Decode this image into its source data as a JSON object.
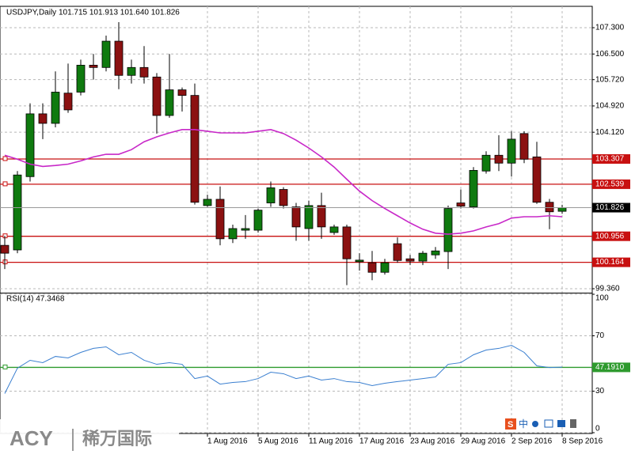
{
  "chart_data": [
    {
      "type": "candlestick",
      "title": "USDJPY,Daily  101.715 101.913 101.640 101.826",
      "categories": [
        null,
        null,
        null,
        null,
        null,
        null,
        null,
        null,
        null,
        null,
        null,
        null,
        null,
        null,
        null,
        null,
        "1 Aug 2016",
        null,
        null,
        null,
        "5 Aug 2016",
        null,
        null,
        null,
        "11 Aug 2016",
        null,
        null,
        null,
        "17 Aug 2016",
        null,
        null,
        null,
        "23 Aug 2016",
        null,
        null,
        null,
        "29 Aug 2016",
        null,
        null,
        null,
        "2 Sep 2016",
        null,
        null,
        null,
        "8 Sep 2016"
      ],
      "open": [
        100.68,
        100.54,
        102.77,
        104.68,
        104.39,
        105.31,
        105.34,
        106.16,
        106.09,
        106.89,
        105.85,
        106.09,
        105.8,
        104.63,
        105.41,
        105.24,
        101.89,
        102.08,
        100.88,
        101.14,
        101.14,
        101.97,
        102.38,
        101.85,
        101.19,
        101.89,
        101.07,
        101.24,
        100.18,
        100.15,
        99.86,
        100.73,
        100.27,
        100.2,
        100.39,
        100.49,
        101.97,
        101.85,
        102.94,
        103.42,
        103.18,
        104.08,
        103.37,
        101.99,
        101.715
      ],
      "high": [
        100.97,
        102.94,
        105.0,
        105.0,
        105.97,
        106.21,
        106.33,
        106.5,
        107.06,
        107.47,
        106.33,
        106.74,
        105.92,
        106.5,
        105.48,
        105.6,
        102.22,
        102.47,
        101.31,
        101.6,
        101.8,
        102.62,
        102.45,
        101.97,
        102.04,
        102.28,
        101.31,
        101.31,
        100.44,
        100.51,
        100.27,
        100.92,
        100.39,
        100.51,
        100.63,
        101.89,
        102.38,
        103.06,
        103.54,
        104.03,
        104.15,
        104.15,
        103.83,
        102.09,
        101.913
      ],
      "low": [
        99.96,
        100.44,
        102.62,
        103.91,
        104.27,
        104.71,
        105.24,
        105.72,
        105.97,
        105.43,
        105.6,
        105.6,
        104.08,
        104.56,
        104.75,
        101.92,
        101.85,
        100.68,
        100.75,
        100.88,
        101.07,
        101.85,
        101.8,
        100.82,
        100.82,
        100.88,
        101.0,
        99.47,
        99.91,
        99.62,
        99.79,
        100.15,
        100.08,
        100.08,
        100.27,
        99.96,
        101.8,
        101.8,
        102.86,
        102.94,
        102.77,
        103.18,
        101.94,
        101.17,
        101.64
      ],
      "close": [
        100.44,
        102.82,
        104.68,
        104.39,
        105.34,
        104.8,
        106.16,
        106.09,
        106.89,
        105.85,
        106.09,
        105.8,
        104.63,
        105.41,
        105.24,
        101.99,
        102.08,
        100.88,
        101.19,
        101.19,
        101.75,
        102.43,
        101.89,
        101.24,
        101.89,
        101.24,
        101.24,
        100.27,
        100.23,
        99.86,
        100.15,
        100.22,
        100.2,
        100.44,
        100.51,
        101.8,
        101.87,
        102.96,
        103.42,
        103.18,
        103.91,
        103.3,
        101.99,
        101.7,
        101.826
      ],
      "up_color": "#0f7a0f",
      "down_color": "#8b1111",
      "overlay": {
        "color": "#c828c8",
        "values": [
          103.42,
          103.3,
          103.15,
          103.08,
          103.11,
          103.15,
          103.25,
          103.37,
          103.45,
          103.45,
          103.59,
          103.83,
          103.98,
          104.1,
          104.2,
          104.2,
          104.15,
          104.1,
          104.1,
          104.1,
          104.15,
          104.2,
          104.08,
          103.88,
          103.64,
          103.37,
          103.06,
          102.69,
          102.33,
          102.04,
          101.8,
          101.58,
          101.36,
          101.17,
          101.05,
          101.02,
          101.05,
          101.12,
          101.24,
          101.34,
          101.51,
          101.55,
          101.55,
          101.58,
          101.55
        ]
      },
      "levels": [
        103.307,
        102.539,
        100.956,
        100.164
      ],
      "levels_color": "#c81010",
      "ylim": [
        99.24,
        107.95
      ],
      "yticks": [
        {
          "value": 107.3,
          "label": "107.300"
        },
        {
          "value": 106.5,
          "label": "106.500"
        },
        {
          "value": 105.72,
          "label": "105.720"
        },
        {
          "value": 104.92,
          "label": "104.920"
        },
        {
          "value": 104.12,
          "label": "104.120"
        },
        {
          "value": 99.36,
          "label": "99.360"
        }
      ],
      "grid": true
    },
    {
      "type": "line",
      "title": "RSI(14) 47.3468",
      "color": "#3a7fd0",
      "values": [
        28.3,
        46.6,
        52.3,
        50.6,
        55.1,
        54.0,
        58.0,
        60.9,
        62.0,
        56.3,
        58.0,
        52.3,
        49.4,
        50.6,
        49.4,
        39.1,
        40.9,
        35.1,
        36.3,
        36.9,
        39.1,
        43.7,
        42.6,
        39.1,
        40.9,
        38.0,
        39.1,
        36.9,
        36.3,
        34.0,
        35.7,
        36.9,
        38.0,
        39.1,
        40.3,
        49.4,
        50.6,
        56.3,
        59.7,
        60.9,
        63.1,
        58.0,
        48.3,
        47.1,
        47.3468
      ],
      "level": {
        "value": 47.191,
        "label": "47.1910"
      },
      "level_color": "#2e9a2e",
      "ylim": [
        0,
        100
      ],
      "yticks": [
        100,
        70,
        30,
        0
      ],
      "grid": true
    }
  ],
  "watermark": {
    "brand": "ACY",
    "name": "稀万国际"
  },
  "toolbar_labels": [
    "S",
    "中"
  ]
}
